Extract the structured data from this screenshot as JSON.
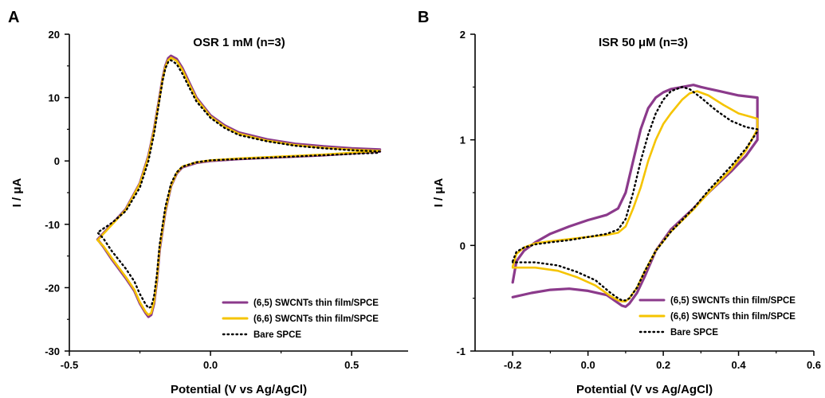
{
  "chart_data": [
    {
      "panel_label": "A",
      "type": "line",
      "title": "OSR 1 mM (n=3)",
      "xlabel": "Potential (V vs Ag/AgCl)",
      "ylabel": "I / μA",
      "xlim": [
        -0.5,
        0.7
      ],
      "ylim": [
        -30,
        20
      ],
      "xticks": [
        -0.5,
        0.0,
        0.5
      ],
      "xtick_labels": [
        "-0.5",
        "0.0",
        "0.5"
      ],
      "yticks": [
        -30,
        -20,
        -10,
        0,
        10,
        20
      ],
      "ytick_labels": [
        "-30",
        "-20",
        "-10",
        "0",
        "10",
        "20"
      ],
      "grid": false,
      "legend_position": "bottom-right",
      "series": [
        {
          "name": "(6,5) SWCNTs thin film/SPCE",
          "color": "#8B3A8B",
          "style": "solid",
          "x": [
            0.6,
            0.5,
            0.4,
            0.3,
            0.2,
            0.1,
            0.05,
            0.0,
            -0.05,
            -0.08,
            -0.1,
            -0.12,
            -0.14,
            -0.15,
            -0.16,
            -0.17,
            -0.18,
            -0.2,
            -0.22,
            -0.25,
            -0.3,
            -0.35,
            -0.4,
            -0.38,
            -0.35,
            -0.3,
            -0.27,
            -0.25,
            -0.23,
            -0.22,
            -0.21,
            -0.2,
            -0.19,
            -0.18,
            -0.16,
            -0.14,
            -0.12,
            -0.1,
            -0.05,
            0.0,
            0.1,
            0.2,
            0.3,
            0.4,
            0.5,
            0.6
          ],
          "y": [
            1.8,
            2.0,
            2.3,
            2.7,
            3.4,
            4.5,
            5.6,
            7.2,
            10.0,
            12.8,
            14.7,
            16.1,
            16.6,
            16.2,
            15.0,
            13.0,
            10.2,
            5.0,
            0.8,
            -3.5,
            -7.6,
            -10.0,
            -12.4,
            -13.5,
            -15.5,
            -18.5,
            -20.5,
            -22.5,
            -24.0,
            -24.6,
            -24.3,
            -22.5,
            -19.0,
            -14.0,
            -8.0,
            -4.0,
            -2.0,
            -1.0,
            -0.3,
            0.0,
            0.3,
            0.5,
            0.7,
            0.9,
            1.2,
            1.5
          ]
        },
        {
          "name": "(6,6) SWCNTs thin film/SPCE",
          "color": "#F5C400",
          "style": "solid",
          "x": [
            0.6,
            0.5,
            0.4,
            0.3,
            0.2,
            0.1,
            0.05,
            0.0,
            -0.05,
            -0.08,
            -0.1,
            -0.12,
            -0.14,
            -0.15,
            -0.16,
            -0.17,
            -0.18,
            -0.2,
            -0.22,
            -0.25,
            -0.3,
            -0.35,
            -0.4,
            -0.38,
            -0.35,
            -0.3,
            -0.27,
            -0.25,
            -0.23,
            -0.22,
            -0.21,
            -0.2,
            -0.19,
            -0.18,
            -0.16,
            -0.14,
            -0.12,
            -0.1,
            -0.05,
            0.0,
            0.1,
            0.2,
            0.3,
            0.4,
            0.5,
            0.6
          ],
          "y": [
            1.6,
            1.8,
            2.1,
            2.5,
            3.2,
            4.3,
            5.4,
            7.0,
            9.8,
            12.5,
            14.4,
            15.8,
            16.3,
            15.9,
            14.8,
            12.8,
            10.0,
            4.8,
            0.6,
            -3.6,
            -7.7,
            -10.1,
            -12.5,
            -13.4,
            -15.3,
            -18.3,
            -20.3,
            -22.3,
            -23.8,
            -24.3,
            -24.0,
            -22.2,
            -18.7,
            -13.7,
            -7.8,
            -3.9,
            -1.9,
            -0.9,
            -0.2,
            0.1,
            0.4,
            0.6,
            0.8,
            1.0,
            1.3,
            1.6
          ]
        },
        {
          "name": "Bare SPCE",
          "color": "#000000",
          "style": "dotted",
          "x": [
            0.6,
            0.5,
            0.4,
            0.3,
            0.2,
            0.1,
            0.05,
            0.0,
            -0.05,
            -0.08,
            -0.1,
            -0.12,
            -0.14,
            -0.15,
            -0.16,
            -0.17,
            -0.18,
            -0.2,
            -0.22,
            -0.25,
            -0.3,
            -0.35,
            -0.4,
            -0.38,
            -0.35,
            -0.3,
            -0.27,
            -0.25,
            -0.23,
            -0.22,
            -0.21,
            -0.2,
            -0.19,
            -0.18,
            -0.16,
            -0.14,
            -0.12,
            -0.1,
            -0.05,
            0.0,
            0.1,
            0.2,
            0.3,
            0.4,
            0.5,
            0.6
          ],
          "y": [
            1.5,
            1.7,
            2.0,
            2.4,
            3.1,
            4.1,
            5.2,
            6.8,
            9.4,
            12.0,
            13.8,
            15.3,
            15.9,
            15.6,
            14.6,
            12.6,
            9.8,
            4.3,
            0.0,
            -4.2,
            -7.9,
            -9.8,
            -11.3,
            -12.2,
            -14.2,
            -17.0,
            -19.0,
            -21.0,
            -22.6,
            -23.2,
            -23.0,
            -21.3,
            -18.0,
            -13.2,
            -7.3,
            -3.6,
            -1.8,
            -0.9,
            -0.2,
            0.1,
            0.3,
            0.5,
            0.7,
            0.9,
            1.1,
            1.3
          ]
        }
      ]
    },
    {
      "panel_label": "B",
      "type": "line",
      "title": "ISR 50 μM (n=3)",
      "xlabel": "Potential (V vs Ag/AgCl)",
      "ylabel": "I / μA",
      "xlim": [
        -0.3,
        0.6
      ],
      "ylim": [
        -1,
        2
      ],
      "xticks": [
        -0.2,
        0.0,
        0.2,
        0.4,
        0.6
      ],
      "xtick_labels": [
        "-0.2",
        "0.0",
        "0.2",
        "0.4",
        "0.6"
      ],
      "yticks": [
        -1,
        0,
        1,
        2
      ],
      "ytick_labels": [
        "-1",
        "0",
        "1",
        "2"
      ],
      "grid": false,
      "legend_position": "bottom-right",
      "series": [
        {
          "name": "(6,5) SWCNTs thin film/SPCE",
          "color": "#8B3A8B",
          "style": "solid",
          "x": [
            -0.2,
            -0.19,
            -0.17,
            -0.14,
            -0.1,
            -0.05,
            0.0,
            0.05,
            0.08,
            0.1,
            0.12,
            0.14,
            0.16,
            0.18,
            0.2,
            0.22,
            0.25,
            0.28,
            0.3,
            0.35,
            0.4,
            0.45,
            0.45,
            0.42,
            0.38,
            0.32,
            0.28,
            0.22,
            0.18,
            0.15,
            0.13,
            0.11,
            0.1,
            0.09,
            0.07,
            0.05,
            0.0,
            -0.05,
            -0.1,
            -0.15,
            -0.2
          ],
          "y": [
            -0.35,
            -0.15,
            -0.05,
            0.03,
            0.11,
            0.18,
            0.24,
            0.29,
            0.35,
            0.5,
            0.8,
            1.1,
            1.3,
            1.4,
            1.45,
            1.48,
            1.5,
            1.52,
            1.5,
            1.46,
            1.42,
            1.4,
            1.0,
            0.85,
            0.7,
            0.5,
            0.35,
            0.15,
            -0.05,
            -0.3,
            -0.45,
            -0.55,
            -0.58,
            -0.57,
            -0.52,
            -0.47,
            -0.43,
            -0.41,
            -0.42,
            -0.45,
            -0.49
          ]
        },
        {
          "name": "(6,6) SWCNTs thin film/SPCE",
          "color": "#F5C400",
          "style": "solid",
          "x": [
            -0.2,
            -0.19,
            -0.17,
            -0.14,
            -0.1,
            -0.05,
            0.0,
            0.05,
            0.08,
            0.1,
            0.12,
            0.14,
            0.16,
            0.18,
            0.2,
            0.22,
            0.25,
            0.27,
            0.29,
            0.32,
            0.36,
            0.4,
            0.45,
            0.45,
            0.42,
            0.38,
            0.32,
            0.28,
            0.22,
            0.18,
            0.15,
            0.13,
            0.11,
            0.1,
            0.09,
            0.08,
            0.06,
            0.02,
            -0.03,
            -0.08,
            -0.14,
            -0.2
          ],
          "y": [
            -0.2,
            -0.08,
            -0.02,
            0.02,
            0.04,
            0.06,
            0.08,
            0.1,
            0.12,
            0.18,
            0.35,
            0.55,
            0.8,
            1.0,
            1.15,
            1.25,
            1.38,
            1.44,
            1.46,
            1.42,
            1.33,
            1.25,
            1.2,
            1.1,
            0.9,
            0.72,
            0.5,
            0.34,
            0.13,
            -0.05,
            -0.25,
            -0.4,
            -0.5,
            -0.53,
            -0.53,
            -0.52,
            -0.48,
            -0.38,
            -0.3,
            -0.24,
            -0.21,
            -0.21
          ]
        },
        {
          "name": "Bare SPCE",
          "color": "#000000",
          "style": "dotted",
          "x": [
            -0.2,
            -0.19,
            -0.17,
            -0.14,
            -0.1,
            -0.05,
            0.0,
            0.05,
            0.08,
            0.1,
            0.12,
            0.14,
            0.16,
            0.18,
            0.2,
            0.22,
            0.25,
            0.27,
            0.3,
            0.34,
            0.38,
            0.42,
            0.45,
            0.45,
            0.42,
            0.38,
            0.32,
            0.28,
            0.22,
            0.18,
            0.15,
            0.13,
            0.11,
            0.1,
            0.09,
            0.08,
            0.06,
            0.02,
            -0.03,
            -0.08,
            -0.14,
            -0.2
          ],
          "y": [
            -0.15,
            -0.06,
            -0.02,
            0.01,
            0.03,
            0.05,
            0.08,
            0.11,
            0.15,
            0.25,
            0.5,
            0.8,
            1.05,
            1.25,
            1.38,
            1.46,
            1.5,
            1.48,
            1.4,
            1.28,
            1.18,
            1.12,
            1.1,
            1.08,
            0.92,
            0.75,
            0.52,
            0.35,
            0.13,
            -0.05,
            -0.25,
            -0.4,
            -0.5,
            -0.52,
            -0.52,
            -0.5,
            -0.45,
            -0.33,
            -0.25,
            -0.19,
            -0.16,
            -0.16
          ]
        }
      ]
    }
  ]
}
